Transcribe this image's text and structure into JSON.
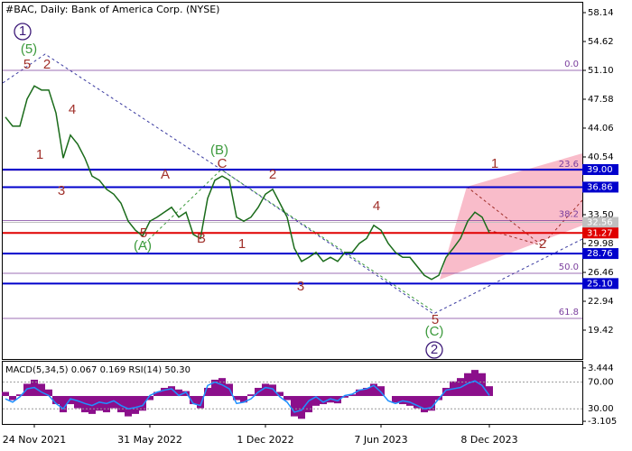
{
  "chart_data": {
    "type": "line",
    "title": "#BAC, Daily:  Bank of America Corp. (NYSE)",
    "categories": [
      null,
      null,
      null,
      null,
      "24 Nov 2021",
      null,
      null,
      null,
      null,
      null,
      null,
      null,
      null,
      null,
      null,
      null,
      null,
      null,
      null,
      null,
      "31 May 2022",
      null,
      null,
      null,
      null,
      null,
      null,
      null,
      null,
      null,
      null,
      null,
      null,
      null,
      null,
      null,
      "1 Dec 2022",
      null,
      null,
      null,
      null,
      null,
      null,
      null,
      null,
      null,
      null,
      null,
      null,
      null,
      null,
      null,
      "7 Jun 2023",
      null,
      null,
      null,
      null,
      null,
      null,
      null,
      null,
      null,
      null,
      null,
      null,
      null,
      null,
      "8 Dec 2023"
    ],
    "values": [
      45.4,
      44.3,
      44.3,
      47.6,
      49.2,
      48.7,
      48.7,
      45.9,
      40.4,
      43.2,
      42.1,
      40.4,
      38.2,
      37.7,
      36.6,
      36.0,
      34.9,
      32.7,
      31.6,
      30.9,
      32.7,
      33.2,
      33.8,
      34.4,
      33.2,
      33.8,
      31.1,
      30.6,
      35.5,
      37.7,
      38.2,
      37.7,
      33.2,
      32.7,
      33.2,
      34.4,
      36.0,
      36.6,
      34.9,
      33.2,
      29.4,
      27.8,
      28.3,
      28.9,
      27.8,
      28.3,
      27.8,
      28.9,
      28.9,
      30.0,
      30.6,
      32.2,
      31.6,
      30.0,
      28.9,
      28.3,
      28.3,
      27.2,
      26.1,
      25.6,
      26.1,
      28.3,
      29.4,
      30.6,
      32.7,
      33.8,
      33.2,
      31.3
    ],
    "color": "#1a6b1a",
    "ylim": [
      15.9,
      59.35
    ],
    "yticks": [
      58.14,
      54.62,
      {
        "value": 51.1,
        "label": "51.10"
      },
      47.58,
      44.06,
      40.54,
      {
        "value": 33.5,
        "label": "33.50"
      },
      29.98,
      26.46,
      22.94,
      19.42
    ],
    "levels": [
      {
        "value": 39,
        "label": "39.00",
        "color": "#0000cc"
      },
      {
        "value": 36.86,
        "label": "36.86",
        "color": "#0000cc"
      },
      {
        "value": 32.56,
        "label": "32.56",
        "color": "#c0c0c0"
      },
      {
        "value": 31.27,
        "label": "31.27",
        "color": "#e00000"
      },
      {
        "value": 28.76,
        "label": "28.76",
        "color": "#0000cc"
      },
      {
        "value": 25.1,
        "label": "25.10",
        "color": "#0000cc"
      }
    ],
    "fib_levels": [
      {
        "value": 0,
        "label": "0.0"
      },
      {
        "value": 23.6,
        "label": "23.6"
      },
      {
        "value": 38.2,
        "label": "38.2"
      },
      {
        "value": 50,
        "label": "50.0"
      },
      {
        "value": 61.8,
        "label": "61.8"
      }
    ],
    "fib_prices": [
      51.1,
      38.9,
      32.8,
      26.35,
      20.85
    ],
    "fib_color": "#7b3f9e",
    "annotations": [
      {
        "text": "1",
        "color": "#3d1a78"
      },
      {
        "text": "(5)",
        "color": "#3c9a3c"
      },
      {
        "text": "5",
        "color": "#a0302a"
      },
      {
        "text": "2",
        "color": "#a0302a"
      },
      {
        "text": "4",
        "color": "#a0302a"
      },
      {
        "text": "1",
        "color": "#a0302a"
      },
      {
        "text": "3",
        "color": "#a0302a"
      },
      {
        "text": "A",
        "color": "#a0302a"
      },
      {
        "text": "(B)",
        "color": "#3c9a3c"
      },
      {
        "text": "C",
        "color": "#a0302a"
      },
      {
        "text": "2",
        "color": "#a0302a"
      },
      {
        "text": "5",
        "color": "#a0302a"
      },
      {
        "text": "(A)",
        "color": "#3c9a3c"
      },
      {
        "text": "B",
        "color": "#a0302a"
      },
      {
        "text": "1",
        "color": "#a0302a"
      },
      {
        "text": "3",
        "color": "#a0302a"
      },
      {
        "text": "4",
        "color": "#a0302a"
      },
      {
        "text": "5",
        "color": "#a0302a"
      },
      {
        "text": "(C)",
        "color": "#3c9a3c"
      },
      {
        "text": "2",
        "color": "#3d1a78"
      },
      {
        "text": "1",
        "color": "#a0302a"
      },
      {
        "text": "2",
        "color": "#a0302a"
      }
    ],
    "indicator": {
      "label": "MACD(5,34,5) 0.067 0.169 RSI(14) 50.30",
      "macd": [
        0.5,
        -0.5,
        0.2,
        1.5,
        2.0,
        1.5,
        0.8,
        -1.0,
        -2.0,
        -1.0,
        -1.5,
        -2.0,
        -2.2,
        -1.8,
        -2.0,
        -1.5,
        -2.0,
        -2.5,
        -2.2,
        -1.8,
        -0.5,
        0.5,
        1.0,
        1.2,
        0.8,
        0.6,
        -1.0,
        -1.5,
        1.0,
        2.0,
        2.2,
        1.5,
        -0.5,
        -0.8,
        0.2,
        1.0,
        1.5,
        1.4,
        0.5,
        -0.5,
        -2.5,
        -2.8,
        -2.0,
        -1.2,
        -1.0,
        -0.8,
        -0.9,
        -0.2,
        0.2,
        0.8,
        1.0,
        1.5,
        1.2,
        0.0,
        -0.8,
        -1.0,
        -1.2,
        -1.5,
        -2.0,
        -1.8,
        -0.5,
        1.0,
        1.8,
        2.2,
        2.8,
        3.2,
        2.8,
        1.2
      ],
      "macd_color": "#8b0f8b",
      "macd_lim": [
        -3.43,
        4.21
      ],
      "macd_ticks": [
        3.444,
        -3.105
      ],
      "rsi": [
        45,
        40,
        48,
        60,
        62,
        55,
        50,
        38,
        30,
        45,
        42,
        38,
        35,
        40,
        38,
        42,
        35,
        30,
        32,
        35,
        50,
        55,
        58,
        60,
        50,
        55,
        38,
        35,
        65,
        70,
        66,
        60,
        38,
        40,
        45,
        55,
        62,
        60,
        48,
        40,
        25,
        28,
        42,
        48,
        40,
        45,
        42,
        50,
        52,
        58,
        60,
        65,
        55,
        42,
        38,
        42,
        40,
        35,
        30,
        32,
        45,
        58,
        60,
        62,
        68,
        72,
        65,
        50
      ],
      "rsi_color": "#1e90ff",
      "rsi_lim": [
        7.3,
        100.7
      ],
      "rsi_ticks": [
        {
          "value": 70,
          "label": "70.00"
        },
        {
          "value": 30,
          "label": "30.00"
        }
      ]
    }
  }
}
